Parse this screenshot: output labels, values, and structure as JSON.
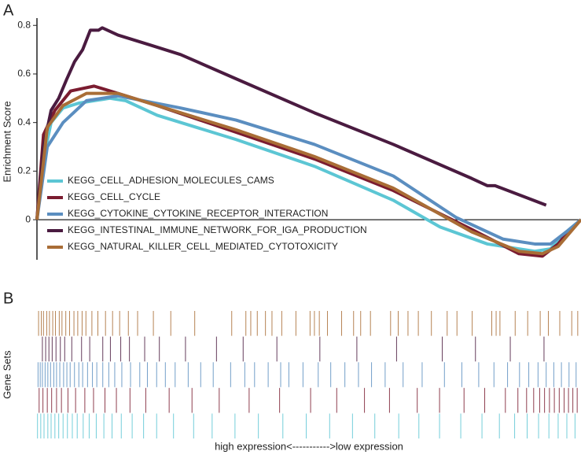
{
  "chart_data": {
    "type": "line",
    "panel_labels": [
      "A",
      "B"
    ],
    "ylabel": "Enrichment Score",
    "hits_label": "Gene Sets",
    "xlabel": "high expression<----------->low expression",
    "ylim": [
      -0.165,
      0.83
    ],
    "yticks": [
      0.0,
      0.2,
      0.4,
      0.6,
      0.8
    ],
    "xlim": [
      0,
      100
    ],
    "zero_line": true,
    "legend": "bottom left",
    "series": [
      {
        "name": "KEGG_CELL_ADHESION_MOLECULES_CAMS",
        "color": "#5cc6d4",
        "x": [
          0,
          1.2,
          2.6,
          4.8,
          7.7,
          13.4,
          16.3,
          22.1,
          36.6,
          51.0,
          65.5,
          74.1,
          82.8,
          91.5,
          94.4,
          97.3,
          100
        ],
        "values": [
          0,
          0.25,
          0.4,
          0.46,
          0.48,
          0.5,
          0.49,
          0.43,
          0.33,
          0.22,
          0.08,
          -0.03,
          -0.1,
          -0.13,
          -0.12,
          -0.05,
          0.0
        ],
        "hits": [
          0.1,
          0.7,
          1.3,
          2.0,
          2.6,
          3.3,
          4.0,
          4.8,
          5.6,
          6.5,
          7.4,
          8.5,
          9.6,
          10.9,
          12.3,
          13.8,
          15.5,
          17.5,
          19.6,
          22.0,
          25.1,
          28.8,
          32.2,
          36.4,
          40.7,
          45.2,
          49.5,
          53.8,
          58.0,
          62.1,
          66.5,
          70.2,
          74.0,
          77.9,
          81.8,
          85.0,
          87.8,
          90.1,
          92.2,
          94.1,
          95.8,
          97.4,
          98.9
        ]
      },
      {
        "name": "KEGG_CELL_CYCLE",
        "color": "#7b1c30",
        "x": [
          0,
          1.2,
          3.3,
          6.2,
          10.5,
          14.9,
          22.1,
          36.6,
          51.0,
          65.5,
          79.9,
          88.6,
          92.9,
          95.8,
          98.0,
          100
        ],
        "values": [
          0,
          0.35,
          0.45,
          0.53,
          0.55,
          0.52,
          0.47,
          0.36,
          0.25,
          0.12,
          -0.04,
          -0.14,
          -0.15,
          -0.1,
          -0.04,
          0.0
        ],
        "hits": [
          0.4,
          1.1,
          1.9,
          2.7,
          3.6,
          4.5,
          5.7,
          7.1,
          8.8,
          10.4,
          12.5,
          14.6,
          17.1,
          20.0,
          24.3,
          28.5,
          33.5,
          39.0,
          44.6,
          50.3,
          55.1,
          60.2,
          64.8,
          69.9,
          74.0,
          78.5,
          82.3,
          86.1,
          88.4,
          90.0,
          91.3,
          92.4,
          93.3,
          94.2,
          95.1,
          96.0,
          96.9,
          97.7,
          98.5,
          99.3
        ]
      },
      {
        "name": "KEGG_CYTOKINE_CYTOKINE_RECEPTOR_INTERACTION",
        "color": "#5b8ec0",
        "x": [
          0,
          1.9,
          4.8,
          9.1,
          14.9,
          26.4,
          36.6,
          51.0,
          65.5,
          77.0,
          85.7,
          91.5,
          94.4,
          97.3,
          100
        ],
        "values": [
          0,
          0.3,
          0.4,
          0.49,
          0.51,
          0.46,
          0.41,
          0.31,
          0.18,
          0.01,
          -0.08,
          -0.1,
          -0.1,
          -0.05,
          0.0
        ],
        "hits": [
          0.2,
          0.6,
          1.0,
          1.5,
          2.0,
          2.5,
          3.1,
          3.6,
          4.2,
          4.9,
          5.5,
          6.1,
          6.9,
          7.7,
          8.4,
          9.3,
          10.2,
          11.0,
          12.1,
          13.2,
          14.3,
          15.6,
          17.2,
          18.9,
          20.3,
          22.0,
          23.6,
          25.4,
          27.8,
          30.1,
          32.4,
          35.6,
          38.2,
          40.0,
          42.5,
          44.8,
          46.3,
          48.9,
          51.7,
          54.0,
          56.6,
          59.1,
          61.5,
          64.0,
          67.3,
          70.8,
          74.9,
          78.1,
          81.2,
          84.0,
          86.5,
          88.7,
          90.4,
          92.1,
          93.6,
          95.0,
          96.4,
          97.8,
          99.1
        ]
      },
      {
        "name": "KEGG_INTESTINAL_IMMUNE_NETWORK_FOR_IGA_PRODUCTION",
        "color": "#4a1b40",
        "x": [
          0,
          1.2,
          2.6,
          4.0,
          5.5,
          6.9,
          8.4,
          9.8,
          11.3,
          12.0,
          14.9,
          20.7,
          26.4,
          36.6,
          51.0,
          65.5,
          79.9,
          82.8,
          84.2,
          93.6
        ],
        "values": [
          0,
          0.3,
          0.45,
          0.5,
          0.58,
          0.65,
          0.7,
          0.78,
          0.78,
          0.79,
          0.76,
          0.72,
          0.68,
          0.58,
          0.44,
          0.31,
          0.17,
          0.14,
          0.14,
          0.06
        ],
        "hits": [
          1.0,
          1.6,
          2.2,
          2.8,
          3.5,
          4.3,
          5.1,
          6.4,
          8.2,
          9.7,
          12.1,
          13.5,
          15.4,
          17.0,
          19.8,
          22.5,
          27.3,
          33.0,
          37.9,
          44.1,
          52.0,
          58.8,
          66.1,
          74.5,
          80.6,
          87.0,
          93.2
        ]
      },
      {
        "name": "KEGG_NATURAL_KILLER_CELL_MEDIATED_CYTOTOXICITY",
        "color": "#a96d36",
        "x": [
          0,
          1.9,
          4.8,
          9.1,
          14.9,
          22.1,
          36.6,
          51.0,
          65.5,
          79.9,
          88.6,
          92.9,
          95.8,
          100
        ],
        "values": [
          0,
          0.38,
          0.47,
          0.52,
          0.52,
          0.47,
          0.37,
          0.26,
          0.13,
          -0.05,
          -0.13,
          -0.14,
          -0.11,
          0.0
        ],
        "hits": [
          0.3,
          0.8,
          1.2,
          1.8,
          2.3,
          2.9,
          3.4,
          4.1,
          4.6,
          5.3,
          6.0,
          6.8,
          7.5,
          8.3,
          9.0,
          10.1,
          11.2,
          12.6,
          13.9,
          15.2,
          16.8,
          18.5,
          21.4,
          24.6,
          29.0,
          35.8,
          38.4,
          39.3,
          40.5,
          42.0,
          43.2,
          45.0,
          47.6,
          50.2,
          51.0,
          51.9,
          53.4,
          56.0,
          58.2,
          59.5,
          61.3,
          65.0,
          66.4,
          68.2,
          70.1,
          72.5,
          75.4,
          77.2,
          80.0,
          83.6,
          84.4,
          85.1,
          87.9,
          90.2,
          92.5,
          94.0,
          96.1,
          98.3,
          99.4
        ]
      }
    ]
  }
}
